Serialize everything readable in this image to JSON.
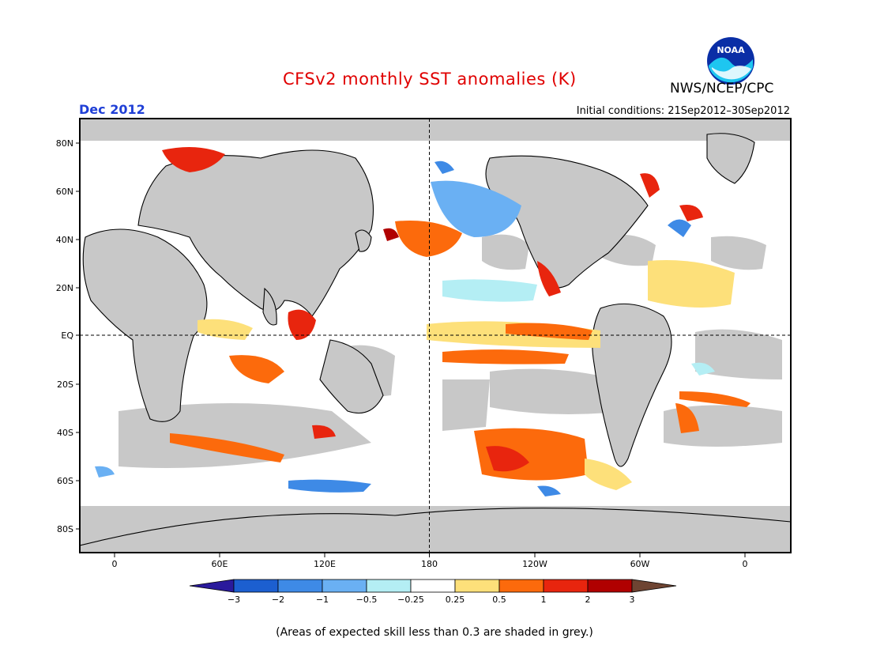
{
  "title": "CFSv2 monthly SST anomalies (K)",
  "agency": "NWS/NCEP/CPC",
  "logo_text": "NOAA",
  "valid_month": "Dec 2012",
  "initial_conditions": "Initial conditions: 21Sep2012–30Sep2012",
  "map": {
    "lat_labels": [
      "80N",
      "60N",
      "40N",
      "20N",
      "EQ",
      "20S",
      "40S",
      "60S",
      "80S"
    ],
    "lon_labels": [
      "0",
      "60E",
      "120E",
      "180",
      "120W",
      "60W",
      "0"
    ],
    "grey_meaning": "low skill",
    "land_color": "#c8c8c8"
  },
  "colorbar": {
    "labels": [
      "−3",
      "−2",
      "−1",
      "−0.5",
      "−0.25",
      "0.25",
      "0.5",
      "1",
      "2",
      "3"
    ],
    "colors": [
      "#2a1a9c",
      "#1c5fd0",
      "#3e8ae6",
      "#6ab0f3",
      "#b4eef4",
      "#ffffff",
      "#fde07a",
      "#fc6a0c",
      "#e8250e",
      "#b00000",
      "#6e4432"
    ]
  },
  "caption": "(Areas of expected skill less than 0.3 are shaded in grey.)"
}
